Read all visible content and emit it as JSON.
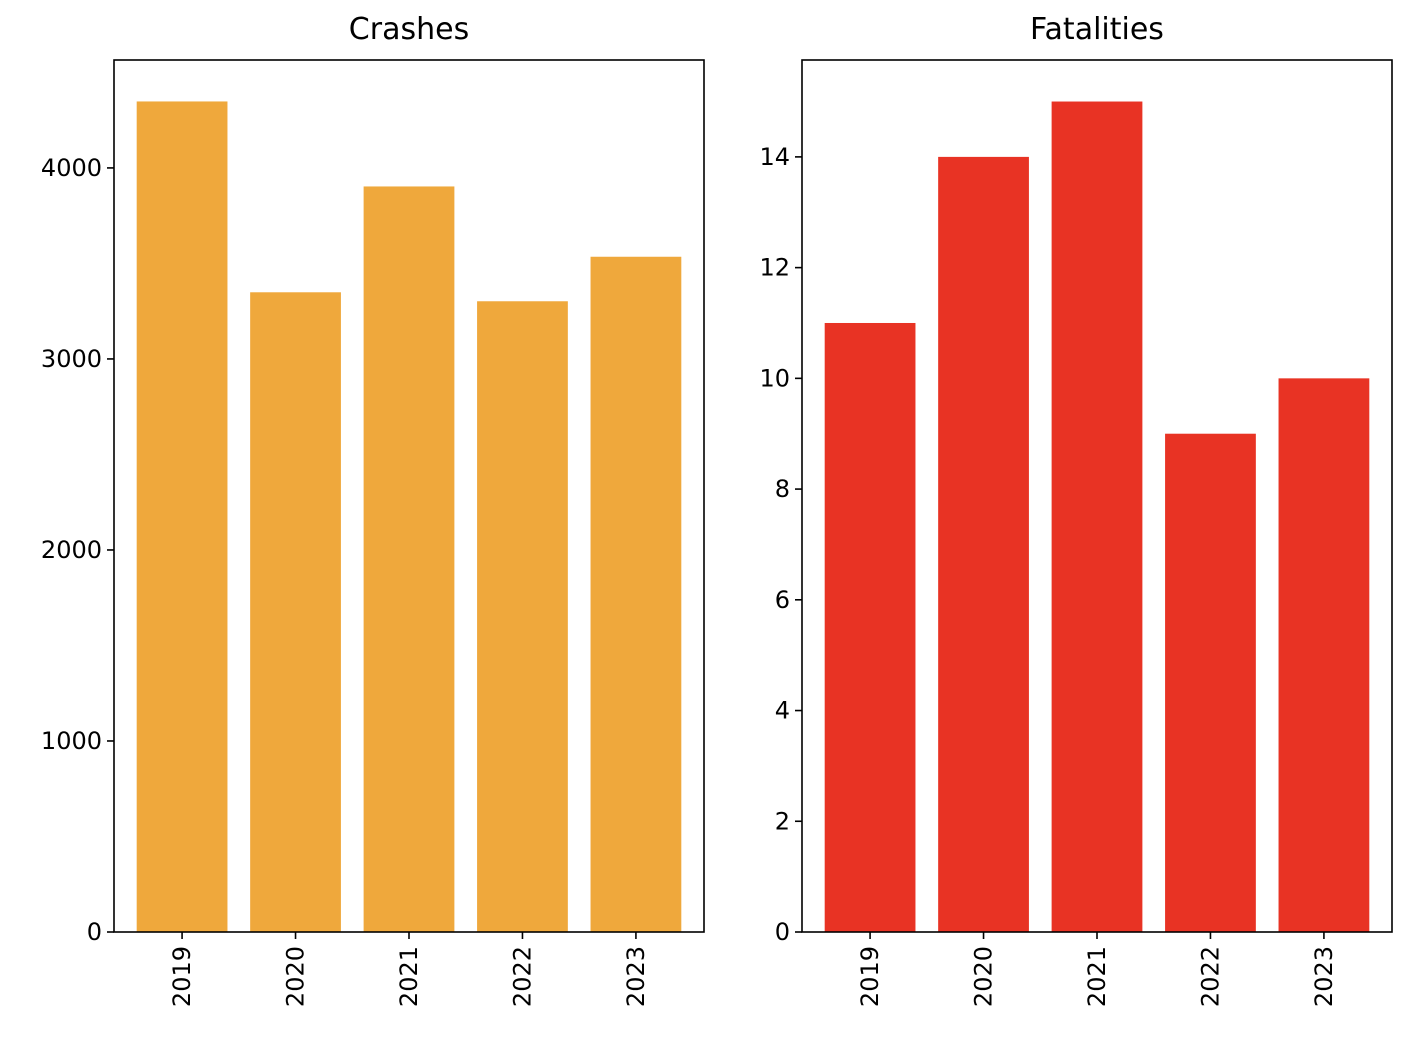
{
  "chart_data": [
    {
      "type": "bar",
      "title": "Crashes",
      "xlabel": "",
      "ylabel": "",
      "categories": [
        "2019",
        "2020",
        "2021",
        "2022",
        "2023"
      ],
      "values": [
        4348,
        3349,
        3903,
        3302,
        3535
      ],
      "ylim": [
        0,
        4565
      ],
      "yticks": [
        0,
        1000,
        2000,
        3000,
        4000
      ],
      "grid": false,
      "color": "#EFA83C"
    },
    {
      "type": "bar",
      "title": "Fatalities",
      "xlabel": "",
      "ylabel": "",
      "categories": [
        "2019",
        "2020",
        "2021",
        "2022",
        "2023"
      ],
      "values": [
        11,
        14,
        15,
        9,
        10
      ],
      "ylim": [
        0,
        15.75
      ],
      "yticks": [
        0,
        2,
        4,
        6,
        8,
        10,
        12,
        14
      ],
      "grid": false,
      "color": "#E83324"
    }
  ]
}
